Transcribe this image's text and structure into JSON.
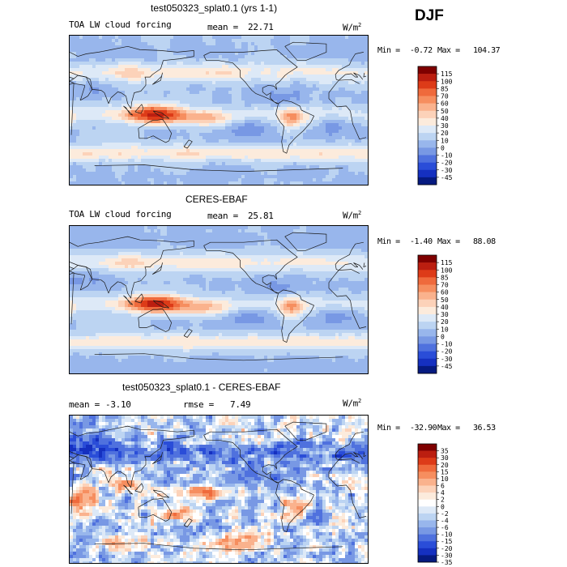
{
  "season": "DJF",
  "colors": {
    "land_outline": "#1a1a1a"
  },
  "chart_data": [
    {
      "type": "heatmap",
      "title": "test050323_splat0.1 (yrs 1-1)",
      "variable": "TOA LW cloud forcing",
      "stat1_label": "mean =",
      "stat1_value": "22.71",
      "stat2_label": "",
      "stat2_value": "",
      "unit": "W/m",
      "unit_sup": "2",
      "min_label": "Min =",
      "min_value": "-0.72",
      "max_label": "Max =",
      "max_value": "104.37",
      "levels": [
        "115",
        "100",
        "85",
        "70",
        "60",
        "50",
        "40",
        "30",
        "20",
        "10",
        "0",
        "-10",
        "-20",
        "-30",
        "-45"
      ],
      "colors": [
        "#7f0000",
        "#bb1e10",
        "#dd3b18",
        "#ef6a3c",
        "#f68e5f",
        "#fab28d",
        "#fcd2b9",
        "#fcebdc",
        "#dde9f7",
        "#bcd4f2",
        "#98b6ec",
        "#7898e4",
        "#4f71de",
        "#2a4dd8",
        "#1530c0",
        "#061a80"
      ],
      "anomaly": false
    },
    {
      "type": "heatmap",
      "title": "CERES-EBAF",
      "variable": "TOA LW cloud forcing",
      "stat1_label": "mean =",
      "stat1_value": "25.81",
      "stat2_label": "",
      "stat2_value": "",
      "unit": "W/m",
      "unit_sup": "2",
      "min_label": "Min =",
      "min_value": "-1.40",
      "max_label": "Max =",
      "max_value": "88.08",
      "levels": [
        "115",
        "100",
        "85",
        "70",
        "60",
        "50",
        "40",
        "30",
        "20",
        "10",
        "0",
        "-10",
        "-20",
        "-30",
        "-45"
      ],
      "colors": [
        "#7f0000",
        "#bb1e10",
        "#dd3b18",
        "#ef6a3c",
        "#f68e5f",
        "#fab28d",
        "#fcd2b9",
        "#fcebdc",
        "#dde9f7",
        "#bcd4f2",
        "#98b6ec",
        "#7898e4",
        "#4f71de",
        "#2a4dd8",
        "#1530c0",
        "#061a80"
      ],
      "anomaly": false
    },
    {
      "type": "heatmap",
      "title": "test050323_splat0.1 - CERES-EBAF",
      "variable": "",
      "stat1_label": "mean =",
      "stat1_value": "-3.10",
      "stat2_label": "rmse =",
      "stat2_value": "7.49",
      "unit": "W/m",
      "unit_sup": "2",
      "min_label": "Min =",
      "min_value": "-32.90",
      "max_label": "Max =",
      "max_value": "36.53",
      "levels": [
        "35",
        "30",
        "20",
        "15",
        "10",
        "6",
        "4",
        "2",
        "0",
        "-2",
        "-4",
        "-6",
        "-10",
        "-15",
        "-20",
        "-30",
        "-35"
      ],
      "colors": [
        "#7f0000",
        "#bb1e10",
        "#dd3b18",
        "#ef6a3c",
        "#f68e5f",
        "#fab28d",
        "#fcd2b9",
        "#fcebdc",
        "#ffffff",
        "#dde9f7",
        "#bcd4f2",
        "#98b6ec",
        "#7898e4",
        "#4f71de",
        "#2a4dd8",
        "#1530c0",
        "#061a80"
      ],
      "anomaly": true
    }
  ]
}
